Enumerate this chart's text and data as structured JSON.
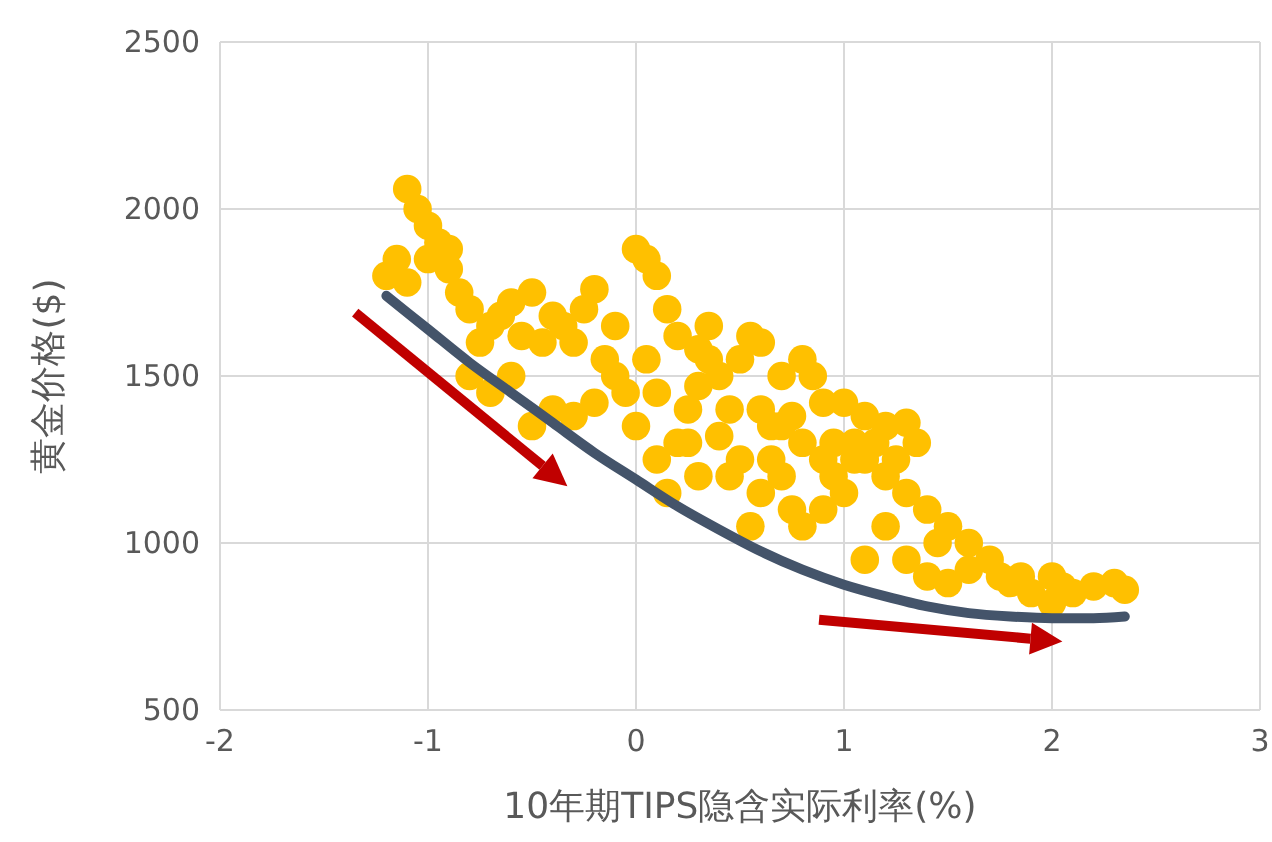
{
  "chart_data": {
    "type": "scatter",
    "xlabel": "10年期TIPS隐含实际利率(%)",
    "ylabel": "黄金价格($)",
    "xlim": [
      -2,
      3
    ],
    "xticks": [
      -2,
      -1,
      0,
      1,
      2,
      3
    ],
    "ylim": [
      500,
      2500
    ],
    "yticks": [
      500,
      1000,
      1500,
      2000,
      2500
    ],
    "grid": true,
    "series": [
      {
        "marker": "circle",
        "color": "#ffc000",
        "x": [
          -1.0,
          -0.9,
          -0.75,
          -0.65,
          -0.45,
          -0.35,
          -0.15,
          -0.05,
          0.1,
          0.25,
          0.45,
          0.65,
          0.75,
          0.95,
          1.05,
          1.15,
          1.25,
          0.15,
          0.25,
          0.45,
          0.65,
          0.75,
          0.95,
          1.05,
          1.45,
          1.75,
          1.85,
          2.05,
          -0.8,
          -0.1,
          0.05,
          0.6,
          0.7,
          -1.1,
          -1.05,
          -1.15,
          -1.2,
          -1.0,
          -0.95,
          -0.9,
          -1.1,
          -0.85,
          -0.8,
          -0.7,
          -0.6,
          -0.55,
          -0.5,
          -0.4,
          -0.3,
          -0.25,
          -0.2,
          -0.1,
          0,
          0.05,
          0.1,
          0.15,
          0.2,
          0.3,
          0.35,
          0.4,
          0.5,
          0.55,
          0.6,
          0.7,
          0.8,
          0.85,
          0.9,
          1.0,
          1.1,
          1.2,
          1.3,
          1.35,
          -0.7,
          -0.6,
          -0.4,
          -0.3,
          -0.2,
          0,
          0.1,
          0.2,
          0.3,
          0.4,
          0.5,
          0.6,
          0.7,
          0.8,
          0.9,
          1.0,
          1.1,
          1.2,
          1.3,
          1.4,
          1.5,
          1.6,
          1.7,
          1.2,
          1.3,
          1.4,
          1.5,
          1.6,
          1.8,
          1.9,
          2.0,
          2.1,
          2.0,
          2.2,
          2.3,
          2.35,
          0.35,
          -0.5,
          0.55,
          0.8,
          0.9,
          1.1,
          0.3
        ],
        "values": [
          1850,
          1880,
          1600,
          1680,
          1600,
          1650,
          1550,
          1450,
          1450,
          1400,
          1400,
          1350,
          1380,
          1300,
          1300,
          1300,
          1250,
          1150,
          1300,
          1200,
          1250,
          1100,
          1200,
          1250,
          1000,
          900,
          900,
          870,
          1500,
          1500,
          1550,
          1400,
          1350,
          2060,
          2000,
          1850,
          1800,
          1950,
          1900,
          1820,
          1780,
          1750,
          1700,
          1650,
          1720,
          1620,
          1750,
          1680,
          1600,
          1700,
          1760,
          1650,
          1880,
          1850,
          1800,
          1700,
          1620,
          1580,
          1650,
          1500,
          1550,
          1620,
          1600,
          1500,
          1550,
          1500,
          1420,
          1420,
          1380,
          1350,
          1360,
          1300,
          1450,
          1500,
          1400,
          1380,
          1420,
          1350,
          1250,
          1300,
          1200,
          1320,
          1250,
          1150,
          1200,
          1300,
          1250,
          1150,
          1250,
          1200,
          1150,
          1100,
          1050,
          1000,
          950,
          1050,
          950,
          900,
          880,
          920,
          880,
          850,
          900,
          850,
          820,
          870,
          880,
          860,
          1550,
          1350,
          1050,
          1050,
          1100,
          950,
          1470
        ]
      },
      {
        "type": "line",
        "color": "#44546a",
        "x": [
          -1.2,
          -1.0,
          -0.8,
          -0.6,
          -0.4,
          -0.2,
          0,
          0.2,
          0.4,
          0.6,
          0.8,
          1.0,
          1.2,
          1.4,
          1.6,
          1.8,
          2.0,
          2.2,
          2.35
        ],
        "values": [
          1740,
          1640,
          1540,
          1450,
          1360,
          1270,
          1190,
          1110,
          1040,
          975,
          920,
          875,
          840,
          810,
          790,
          780,
          775,
          775,
          780
        ]
      }
    ]
  }
}
